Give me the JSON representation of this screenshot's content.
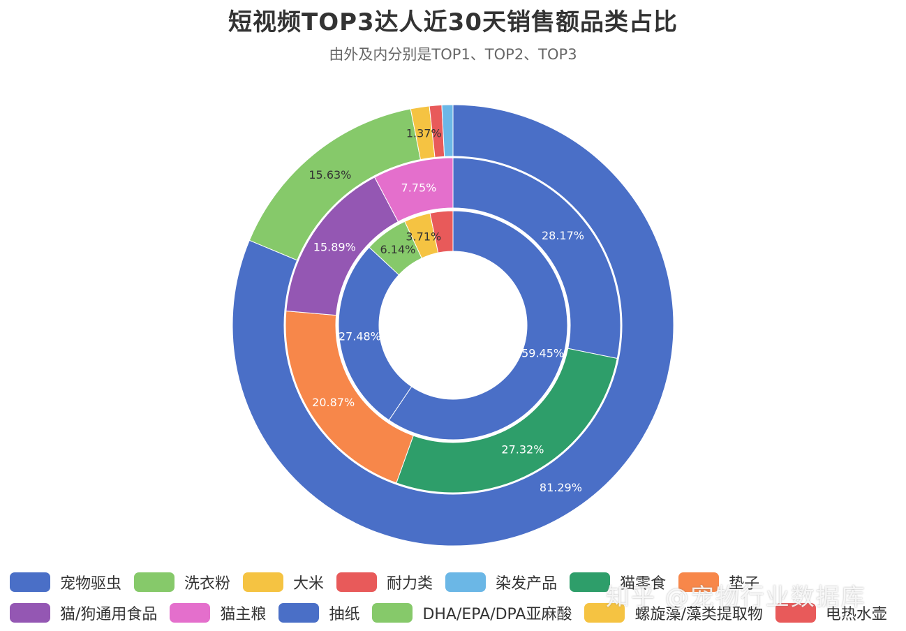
{
  "chart_data": {
    "type": "pie",
    "title": "短视频TOP3达人近30天销售额品类占比",
    "subtitle": "由外及内分别是TOP1、TOP2、TOP3",
    "rings": [
      {
        "slices": [
          {
            "name": "宠物驱虫",
            "value": 81.29,
            "label": "81.29%",
            "color": "#4a6fc7"
          },
          {
            "name": "洗衣粉",
            "value": 15.63,
            "label": "15.63%",
            "color": "#86c96a"
          },
          {
            "name": "大米",
            "value": 1.37,
            "label": "1.37%",
            "color": "#f5c342"
          },
          {
            "name": "耐力类",
            "value": 0.9,
            "label": "",
            "color": "#e85a5a"
          },
          {
            "name": "染发产品",
            "value": 0.81,
            "label": "",
            "color": "#6bb7e6"
          }
        ]
      },
      {
        "slices": [
          {
            "name": "抽纸",
            "value": 28.17,
            "label": "28.17%",
            "color": "#4a6fc7"
          },
          {
            "name": "猫零食",
            "value": 27.32,
            "label": "27.32%",
            "color": "#2e9e6a"
          },
          {
            "name": "垫子",
            "value": 20.87,
            "label": "20.87%",
            "color": "#f7874a"
          },
          {
            "name": "猫/狗通用食品",
            "value": 15.89,
            "label": "15.89%",
            "color": "#9457b3"
          },
          {
            "name": "猫主粮",
            "value": 7.75,
            "label": "7.75%",
            "color": "#e46fcc"
          }
        ]
      },
      {
        "slices": [
          {
            "name": "宠物驱虫",
            "value": 59.45,
            "label": "59.45%",
            "color": "#4a6fc7"
          },
          {
            "name": "抽纸",
            "value": 27.48,
            "label": "27.48%",
            "color": "#4a6fc7"
          },
          {
            "name": "DHA/EPA/DPA亚麻酸",
            "value": 6.14,
            "label": "6.14%",
            "color": "#86c96a"
          },
          {
            "name": "螺旋藻/藻类提取物",
            "value": 3.71,
            "label": "3.71%",
            "color": "#f5c342"
          },
          {
            "name": "电热水壶",
            "value": 3.22,
            "label": "",
            "color": "#e85a5a"
          }
        ]
      }
    ],
    "legend": {
      "placement": "bottom",
      "rows": [
        [
          {
            "name": "宠物驱虫",
            "color": "#4a6fc7"
          },
          {
            "name": "洗衣粉",
            "color": "#86c96a"
          },
          {
            "name": "大米",
            "color": "#f5c342"
          },
          {
            "name": "耐力类",
            "color": "#e85a5a"
          },
          {
            "name": "染发产品",
            "color": "#6bb7e6"
          },
          {
            "name": "猫零食",
            "color": "#2e9e6a"
          },
          {
            "name": "垫子",
            "color": "#f7874a"
          }
        ],
        [
          {
            "name": "猫/狗通用食品",
            "color": "#9457b3"
          },
          {
            "name": "猫主粮",
            "color": "#e46fcc"
          },
          {
            "name": "抽纸",
            "color": "#4a6fc7"
          },
          {
            "name": "DHA/EPA/DPA亚麻酸",
            "color": "#86c96a"
          },
          {
            "name": "螺旋藻/藻类提取物",
            "color": "#f5c342"
          },
          {
            "name": "电热水壶",
            "color": "#e85a5a"
          }
        ]
      ]
    }
  },
  "watermark": "知乎 @宠物行业数据库"
}
